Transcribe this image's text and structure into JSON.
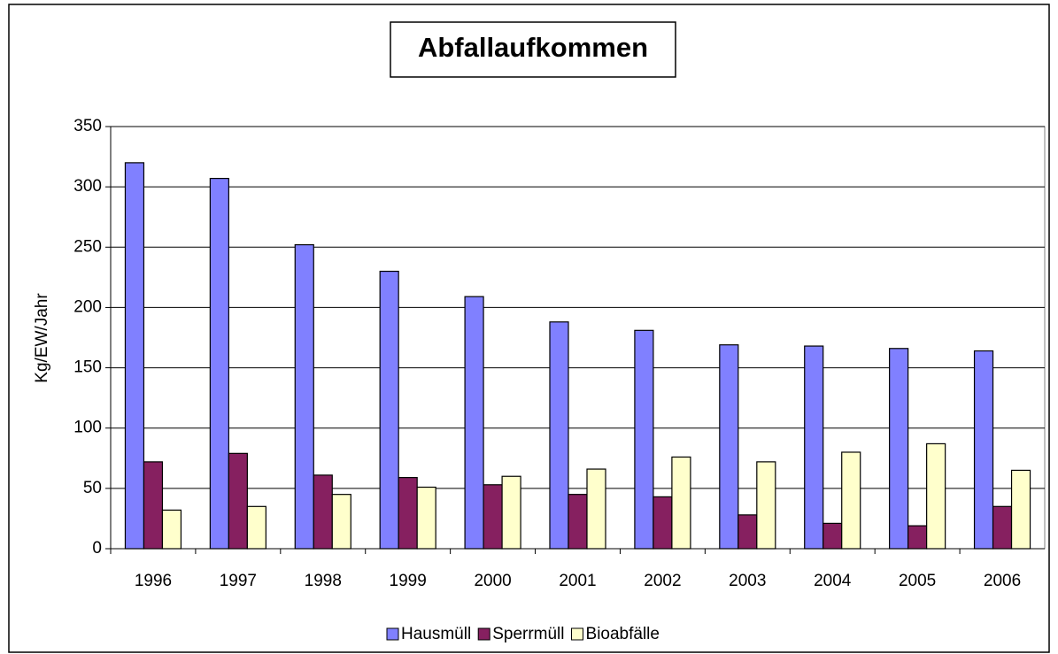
{
  "chart_data": {
    "type": "bar",
    "title": "Abfallaufkommen",
    "y_label": "Kg/EW/Jahr",
    "categories": [
      "1996",
      "1997",
      "1998",
      "1999",
      "2000",
      "2001",
      "2002",
      "2003",
      "2004",
      "2005",
      "2006"
    ],
    "series": [
      {
        "name": "Hausmüll",
        "color": "#8080ff",
        "values": [
          320,
          307,
          252,
          230,
          209,
          188,
          181,
          169,
          168,
          166,
          164
        ]
      },
      {
        "name": "Sperrmüll",
        "color": "#862060",
        "values": [
          72,
          79,
          61,
          59,
          53,
          45,
          43,
          28,
          21,
          19,
          35
        ]
      },
      {
        "name": "Bioabfälle",
        "color": "#ffffcc",
        "values": [
          32,
          35,
          45,
          51,
          60,
          66,
          76,
          72,
          80,
          87,
          65
        ]
      }
    ],
    "ylim": [
      0,
      350
    ],
    "yticks": [
      0,
      50,
      100,
      150,
      200,
      250,
      300,
      350
    ],
    "grid": true,
    "legend": "bottom"
  }
}
